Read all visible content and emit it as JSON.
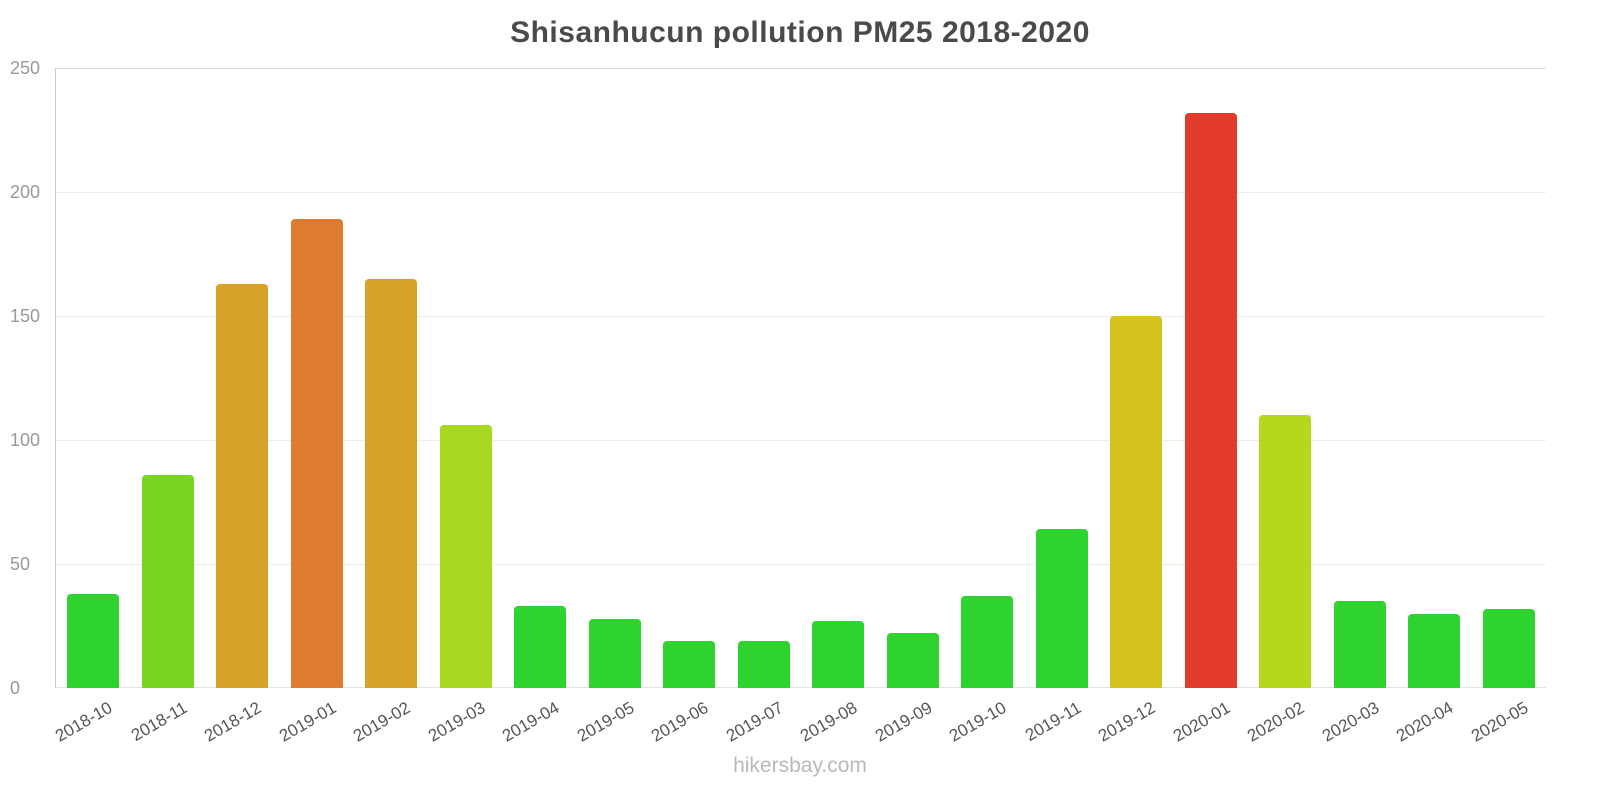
{
  "title": "Shisanhucun pollution PM25 2018-2020",
  "footer": {
    "text": "hikersbay.com"
  },
  "chart_data": {
    "type": "bar",
    "title": "Shisanhucun pollution PM25 2018-2020",
    "xlabel": "",
    "ylabel": "",
    "ylim": [
      0,
      250
    ],
    "yticks": [
      0,
      50,
      100,
      150,
      200,
      250
    ],
    "grid": true,
    "legend": "none",
    "categories": [
      "2018-10",
      "2018-11",
      "2018-12",
      "2019-01",
      "2019-02",
      "2019-03",
      "2019-04",
      "2019-05",
      "2019-06",
      "2019-07",
      "2019-08",
      "2019-09",
      "2019-10",
      "2019-11",
      "2019-12",
      "2020-01",
      "2020-02",
      "2020-03",
      "2020-04",
      "2020-05"
    ],
    "values": [
      38,
      86,
      163,
      189,
      165,
      106,
      33,
      28,
      19,
      19,
      27,
      22,
      37,
      64,
      150,
      232,
      110,
      35,
      30,
      32
    ],
    "bar_colors": [
      "#2fd32f",
      "#7ad522",
      "#d8a128",
      "#df7b2e",
      "#d8a128",
      "#a8d81f",
      "#2fd32f",
      "#2fd32f",
      "#2fd32f",
      "#2fd32f",
      "#2fd32f",
      "#2fd32f",
      "#2fd32f",
      "#2fd32f",
      "#d6c31f",
      "#e23a2b",
      "#b5d81c",
      "#2fd32f",
      "#2fd32f",
      "#2fd32f"
    ]
  }
}
